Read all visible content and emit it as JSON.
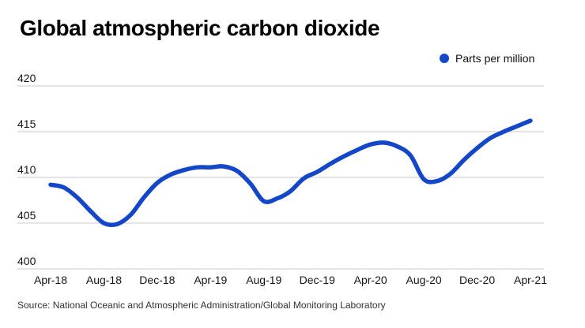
{
  "title": "Global atmospheric carbon dioxide",
  "legend": {
    "label": "Parts per million",
    "marker_color": "#1347c8"
  },
  "source": {
    "text": "Source: National Oceanic and Atmospheric Administration/Global Monitoring Laboratory"
  },
  "colors": {
    "line": "#1347c8",
    "grid": "#c9c9c9",
    "axis_text": "#151515",
    "source_text": "#333333",
    "title_text": "#000000"
  },
  "chart_data": {
    "type": "line",
    "title": "Global atmospheric carbon dioxide",
    "xlabel": "",
    "ylabel": "Parts per million",
    "unit": "ppm",
    "grid": "horizontal",
    "legend_position": "top-right",
    "ylim": [
      400,
      420
    ],
    "y_ticks": [
      400,
      405,
      410,
      415,
      420
    ],
    "x_tick_every": 4,
    "x_tick_labels": [
      "Apr-18",
      "Aug-18",
      "Dec-18",
      "Apr-19",
      "Aug-19",
      "Dec-19",
      "Apr-20",
      "Aug-20",
      "Dec-20",
      "Apr-21"
    ],
    "x": [
      "Apr-18",
      "May-18",
      "Jun-18",
      "Jul-18",
      "Aug-18",
      "Sep-18",
      "Oct-18",
      "Nov-18",
      "Dec-18",
      "Jan-19",
      "Feb-19",
      "Mar-19",
      "Apr-19",
      "May-19",
      "Jun-19",
      "Jul-19",
      "Aug-19",
      "Sep-19",
      "Oct-19",
      "Nov-19",
      "Dec-19",
      "Jan-20",
      "Feb-20",
      "Mar-20",
      "Apr-20",
      "May-20",
      "Jun-20",
      "Jul-20",
      "Aug-20",
      "Sep-20",
      "Oct-20",
      "Nov-20",
      "Dec-20",
      "Jan-21",
      "Feb-21",
      "Mar-21",
      "Apr-21"
    ],
    "series": [
      {
        "name": "Parts per million",
        "values": [
          409.2,
          408.9,
          407.8,
          406.3,
          405.0,
          404.9,
          405.9,
          407.8,
          409.4,
          410.3,
          410.8,
          411.1,
          411.1,
          411.2,
          410.7,
          409.3,
          407.4,
          407.7,
          408.5,
          409.9,
          410.6,
          411.5,
          412.3,
          413.0,
          413.6,
          413.8,
          413.4,
          412.4,
          409.8,
          409.6,
          410.4,
          411.9,
          413.2,
          414.3,
          415.0,
          415.6,
          416.2
        ]
      }
    ]
  }
}
